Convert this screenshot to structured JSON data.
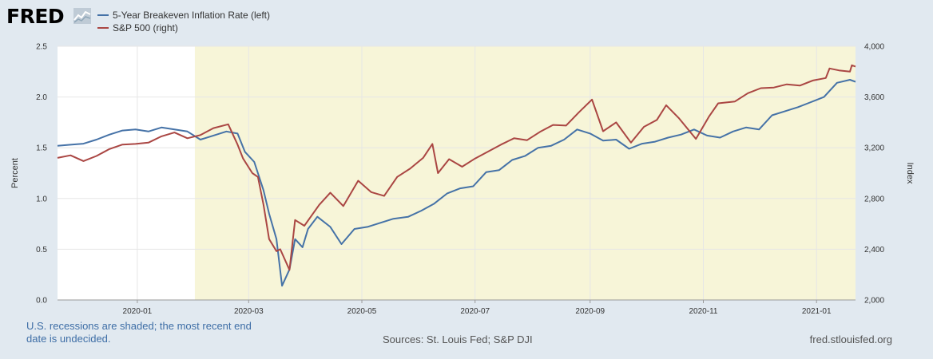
{
  "brand": {
    "logo_text": "FRED"
  },
  "legend": [
    {
      "label": "5-Year Breakeven Inflation Rate (left)",
      "color": "#4572a7"
    },
    {
      "label": "S&P 500 (right)",
      "color": "#aa4643"
    }
  ],
  "footer": {
    "note": "U.S. recessions are shaded; the most recent end date is undecided.",
    "sources": "Sources: St. Louis Fed; S&P DJI",
    "site": "fred.stlouisfed.org"
  },
  "chart_data": {
    "type": "line",
    "x_range": [
      "2019-11-19",
      "2021-01-22"
    ],
    "left_axis": {
      "label": "Percent",
      "ylim": [
        0,
        2.5
      ],
      "ticks": [
        "0.0",
        "0.5",
        "1.0",
        "1.5",
        "2.0",
        "2.5"
      ]
    },
    "right_axis": {
      "label": "Index",
      "ylim": [
        2000,
        4000
      ],
      "ticks": [
        "2,000",
        "2,400",
        "2,800",
        "3,200",
        "3,600",
        "4,000"
      ]
    },
    "x_ticks": [
      {
        "date": "2020-01-01",
        "label": "2020-01"
      },
      {
        "date": "2020-03-01",
        "label": "2020-03"
      },
      {
        "date": "2020-05-01",
        "label": "2020-05"
      },
      {
        "date": "2020-07-01",
        "label": "2020-07"
      },
      {
        "date": "2020-09-01",
        "label": "2020-09"
      },
      {
        "date": "2020-11-01",
        "label": "2020-11"
      },
      {
        "date": "2021-01-01",
        "label": "2021-01"
      }
    ],
    "recession": {
      "start": "2020-02-01",
      "end": "2021-01-22",
      "color": "#f7f5d8"
    },
    "grid": true,
    "series": [
      {
        "name": "5-Year Breakeven Inflation Rate (left)",
        "axis": "left",
        "color": "#4572a7",
        "points": [
          [
            "2019-11-19",
            1.52
          ],
          [
            "2019-11-26",
            1.53
          ],
          [
            "2019-12-03",
            1.54
          ],
          [
            "2019-12-10",
            1.58
          ],
          [
            "2019-12-17",
            1.63
          ],
          [
            "2019-12-24",
            1.67
          ],
          [
            "2019-12-31",
            1.68
          ],
          [
            "2020-01-07",
            1.66
          ],
          [
            "2020-01-14",
            1.7
          ],
          [
            "2020-01-21",
            1.68
          ],
          [
            "2020-01-28",
            1.66
          ],
          [
            "2020-02-04",
            1.58
          ],
          [
            "2020-02-11",
            1.62
          ],
          [
            "2020-02-18",
            1.66
          ],
          [
            "2020-02-24",
            1.64
          ],
          [
            "2020-02-28",
            1.46
          ],
          [
            "2020-03-04",
            1.36
          ],
          [
            "2020-03-09",
            1.08
          ],
          [
            "2020-03-12",
            0.85
          ],
          [
            "2020-03-16",
            0.6
          ],
          [
            "2020-03-19",
            0.14
          ],
          [
            "2020-03-23",
            0.3
          ],
          [
            "2020-03-26",
            0.6
          ],
          [
            "2020-03-30",
            0.52
          ],
          [
            "2020-04-02",
            0.7
          ],
          [
            "2020-04-07",
            0.82
          ],
          [
            "2020-04-14",
            0.72
          ],
          [
            "2020-04-20",
            0.55
          ],
          [
            "2020-04-27",
            0.7
          ],
          [
            "2020-05-04",
            0.72
          ],
          [
            "2020-05-11",
            0.76
          ],
          [
            "2020-05-18",
            0.8
          ],
          [
            "2020-05-26",
            0.82
          ],
          [
            "2020-06-02",
            0.88
          ],
          [
            "2020-06-09",
            0.95
          ],
          [
            "2020-06-16",
            1.05
          ],
          [
            "2020-06-23",
            1.1
          ],
          [
            "2020-06-30",
            1.12
          ],
          [
            "2020-07-07",
            1.26
          ],
          [
            "2020-07-14",
            1.28
          ],
          [
            "2020-07-21",
            1.38
          ],
          [
            "2020-07-28",
            1.42
          ],
          [
            "2020-08-04",
            1.5
          ],
          [
            "2020-08-11",
            1.52
          ],
          [
            "2020-08-18",
            1.58
          ],
          [
            "2020-08-25",
            1.68
          ],
          [
            "2020-09-01",
            1.64
          ],
          [
            "2020-09-08",
            1.57
          ],
          [
            "2020-09-15",
            1.58
          ],
          [
            "2020-09-22",
            1.49
          ],
          [
            "2020-09-29",
            1.54
          ],
          [
            "2020-10-06",
            1.56
          ],
          [
            "2020-10-13",
            1.6
          ],
          [
            "2020-10-20",
            1.63
          ],
          [
            "2020-10-27",
            1.68
          ],
          [
            "2020-11-03",
            1.62
          ],
          [
            "2020-11-10",
            1.6
          ],
          [
            "2020-11-17",
            1.66
          ],
          [
            "2020-11-24",
            1.7
          ],
          [
            "2020-12-01",
            1.68
          ],
          [
            "2020-12-08",
            1.82
          ],
          [
            "2020-12-15",
            1.86
          ],
          [
            "2020-12-22",
            1.9
          ],
          [
            "2020-12-29",
            1.95
          ],
          [
            "2021-01-05",
            2.0
          ],
          [
            "2021-01-12",
            2.14
          ],
          [
            "2021-01-19",
            2.17
          ],
          [
            "2021-01-22",
            2.15
          ]
        ]
      },
      {
        "name": "S&P 500 (right)",
        "axis": "right",
        "color": "#aa4643",
        "points": [
          [
            "2019-11-19",
            3120
          ],
          [
            "2019-11-26",
            3140
          ],
          [
            "2019-12-03",
            3095
          ],
          [
            "2019-12-10",
            3135
          ],
          [
            "2019-12-17",
            3190
          ],
          [
            "2019-12-24",
            3225
          ],
          [
            "2019-12-31",
            3230
          ],
          [
            "2020-01-07",
            3240
          ],
          [
            "2020-01-14",
            3290
          ],
          [
            "2020-01-21",
            3320
          ],
          [
            "2020-01-28",
            3275
          ],
          [
            "2020-02-04",
            3300
          ],
          [
            "2020-02-11",
            3355
          ],
          [
            "2020-02-19",
            3385
          ],
          [
            "2020-02-24",
            3225
          ],
          [
            "2020-02-27",
            3115
          ],
          [
            "2020-03-03",
            3000
          ],
          [
            "2020-03-06",
            2970
          ],
          [
            "2020-03-09",
            2750
          ],
          [
            "2020-03-12",
            2480
          ],
          [
            "2020-03-16",
            2385
          ],
          [
            "2020-03-18",
            2400
          ],
          [
            "2020-03-23",
            2237
          ],
          [
            "2020-03-26",
            2630
          ],
          [
            "2020-03-31",
            2585
          ],
          [
            "2020-04-08",
            2750
          ],
          [
            "2020-04-14",
            2845
          ],
          [
            "2020-04-21",
            2740
          ],
          [
            "2020-04-29",
            2940
          ],
          [
            "2020-05-06",
            2850
          ],
          [
            "2020-05-13",
            2820
          ],
          [
            "2020-05-20",
            2970
          ],
          [
            "2020-05-27",
            3035
          ],
          [
            "2020-06-03",
            3120
          ],
          [
            "2020-06-08",
            3230
          ],
          [
            "2020-06-11",
            3000
          ],
          [
            "2020-06-17",
            3110
          ],
          [
            "2020-06-24",
            3050
          ],
          [
            "2020-07-01",
            3115
          ],
          [
            "2020-07-08",
            3170
          ],
          [
            "2020-07-15",
            3225
          ],
          [
            "2020-07-22",
            3275
          ],
          [
            "2020-07-29",
            3260
          ],
          [
            "2020-08-05",
            3325
          ],
          [
            "2020-08-12",
            3380
          ],
          [
            "2020-08-19",
            3375
          ],
          [
            "2020-08-26",
            3480
          ],
          [
            "2020-09-02",
            3580
          ],
          [
            "2020-09-08",
            3330
          ],
          [
            "2020-09-15",
            3400
          ],
          [
            "2020-09-23",
            3240
          ],
          [
            "2020-09-30",
            3365
          ],
          [
            "2020-10-07",
            3420
          ],
          [
            "2020-10-12",
            3535
          ],
          [
            "2020-10-19",
            3430
          ],
          [
            "2020-10-28",
            3270
          ],
          [
            "2020-11-04",
            3445
          ],
          [
            "2020-11-09",
            3550
          ],
          [
            "2020-11-18",
            3565
          ],
          [
            "2020-11-25",
            3630
          ],
          [
            "2020-12-02",
            3670
          ],
          [
            "2020-12-09",
            3675
          ],
          [
            "2020-12-16",
            3700
          ],
          [
            "2020-12-23",
            3690
          ],
          [
            "2020-12-30",
            3730
          ],
          [
            "2021-01-06",
            3750
          ],
          [
            "2021-01-08",
            3825
          ],
          [
            "2021-01-13",
            3810
          ],
          [
            "2021-01-19",
            3800
          ],
          [
            "2021-01-20",
            3850
          ],
          [
            "2021-01-22",
            3840
          ]
        ]
      }
    ]
  }
}
